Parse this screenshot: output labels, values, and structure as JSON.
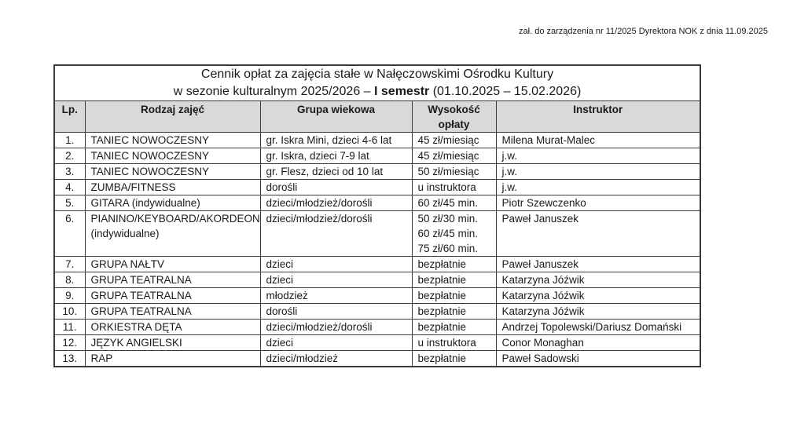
{
  "note": "zał. do zarządzenia nr 11/2025 Dyrektora NOK z dnia 11.09.2025",
  "title": {
    "line1": "Cennik opłat za zajęcia stałe w Nałęczowskimi Ośrodku Kultury",
    "line2_prefix": "w sezonie kulturalnym 2025/2026 – ",
    "line2_bold": "I semestr",
    "line2_suffix": " (01.10.2025 – 15.02.2026)"
  },
  "table": {
    "headers": [
      "Lp.",
      "Rodzaj zajęć",
      "Grupa wiekowa",
      "Wysokość opłaty",
      "Instruktor"
    ],
    "rows": [
      {
        "lp": "1.",
        "activity": "TANIEC NOWOCZESNY",
        "age_group": "gr. Iskra Mini, dzieci 4-6 lat",
        "fees": [
          "45 zł/miesiąc"
        ],
        "instructor": "Milena Murat-Malec"
      },
      {
        "lp": "2.",
        "activity": "TANIEC NOWOCZESNY",
        "age_group": "gr. Iskra, dzieci 7-9 lat",
        "fees": [
          "45 zł/miesiąc"
        ],
        "instructor": "j.w."
      },
      {
        "lp": "3.",
        "activity": "TANIEC NOWOCZESNY",
        "age_group": "gr. Flesz, dzieci od 10 lat",
        "fees": [
          "50 zł/miesiąc"
        ],
        "instructor": "j.w."
      },
      {
        "lp": "4.",
        "activity": "ZUMBA/FITNESS",
        "age_group": "dorośli",
        "fees": [
          "u instruktora"
        ],
        "instructor": "j.w."
      },
      {
        "lp": "5.",
        "activity": "GITARA (indywidualne)",
        "age_group": "dzieci/młodzież/dorośli",
        "fees": [
          "60 zł/45 min."
        ],
        "instructor": "Piotr Szewczenko"
      },
      {
        "lp": "6.",
        "activity": "PIANINO/KEYBOARD/AKORDEON (indywidualne)",
        "age_group": "dzieci/młodzież/dorośli",
        "fees": [
          "50 zł/30 min.",
          "60 zł/45 min.",
          "75 zł/60 min."
        ],
        "instructor": "Paweł Januszek"
      },
      {
        "lp": "7.",
        "activity": "GRUPA NAŁTV",
        "age_group": "dzieci",
        "fees": [
          "bezpłatnie"
        ],
        "instructor": "Paweł Januszek"
      },
      {
        "lp": "8.",
        "activity": "GRUPA TEATRALNA",
        "age_group": "dzieci",
        "fees": [
          "bezpłatnie"
        ],
        "instructor": "Katarzyna Jóźwik"
      },
      {
        "lp": "9.",
        "activity": "GRUPA TEATRALNA",
        "age_group": "młodzież",
        "fees": [
          "bezpłatnie"
        ],
        "instructor": "Katarzyna Jóźwik"
      },
      {
        "lp": "10.",
        "activity": "GRUPA TEATRALNA",
        "age_group": "dorośli",
        "fees": [
          "bezpłatnie"
        ],
        "instructor": "Katarzyna Jóźwik"
      },
      {
        "lp": "11.",
        "activity": "ORKIESTRA DĘTA",
        "age_group": "dzieci/młodzież/dorośli",
        "fees": [
          "bezpłatnie"
        ],
        "instructor": "Andrzej Topolewski/Dariusz Domański"
      },
      {
        "lp": "12.",
        "activity": "JĘZYK ANGIELSKI",
        "age_group": "dzieci",
        "fees": [
          "u instruktora"
        ],
        "instructor": "Conor Monaghan"
      },
      {
        "lp": "13.",
        "activity": "RAP",
        "age_group": "dzieci/młodzież",
        "fees": [
          "bezpłatnie"
        ],
        "instructor": "Paweł Sadowski"
      }
    ]
  }
}
